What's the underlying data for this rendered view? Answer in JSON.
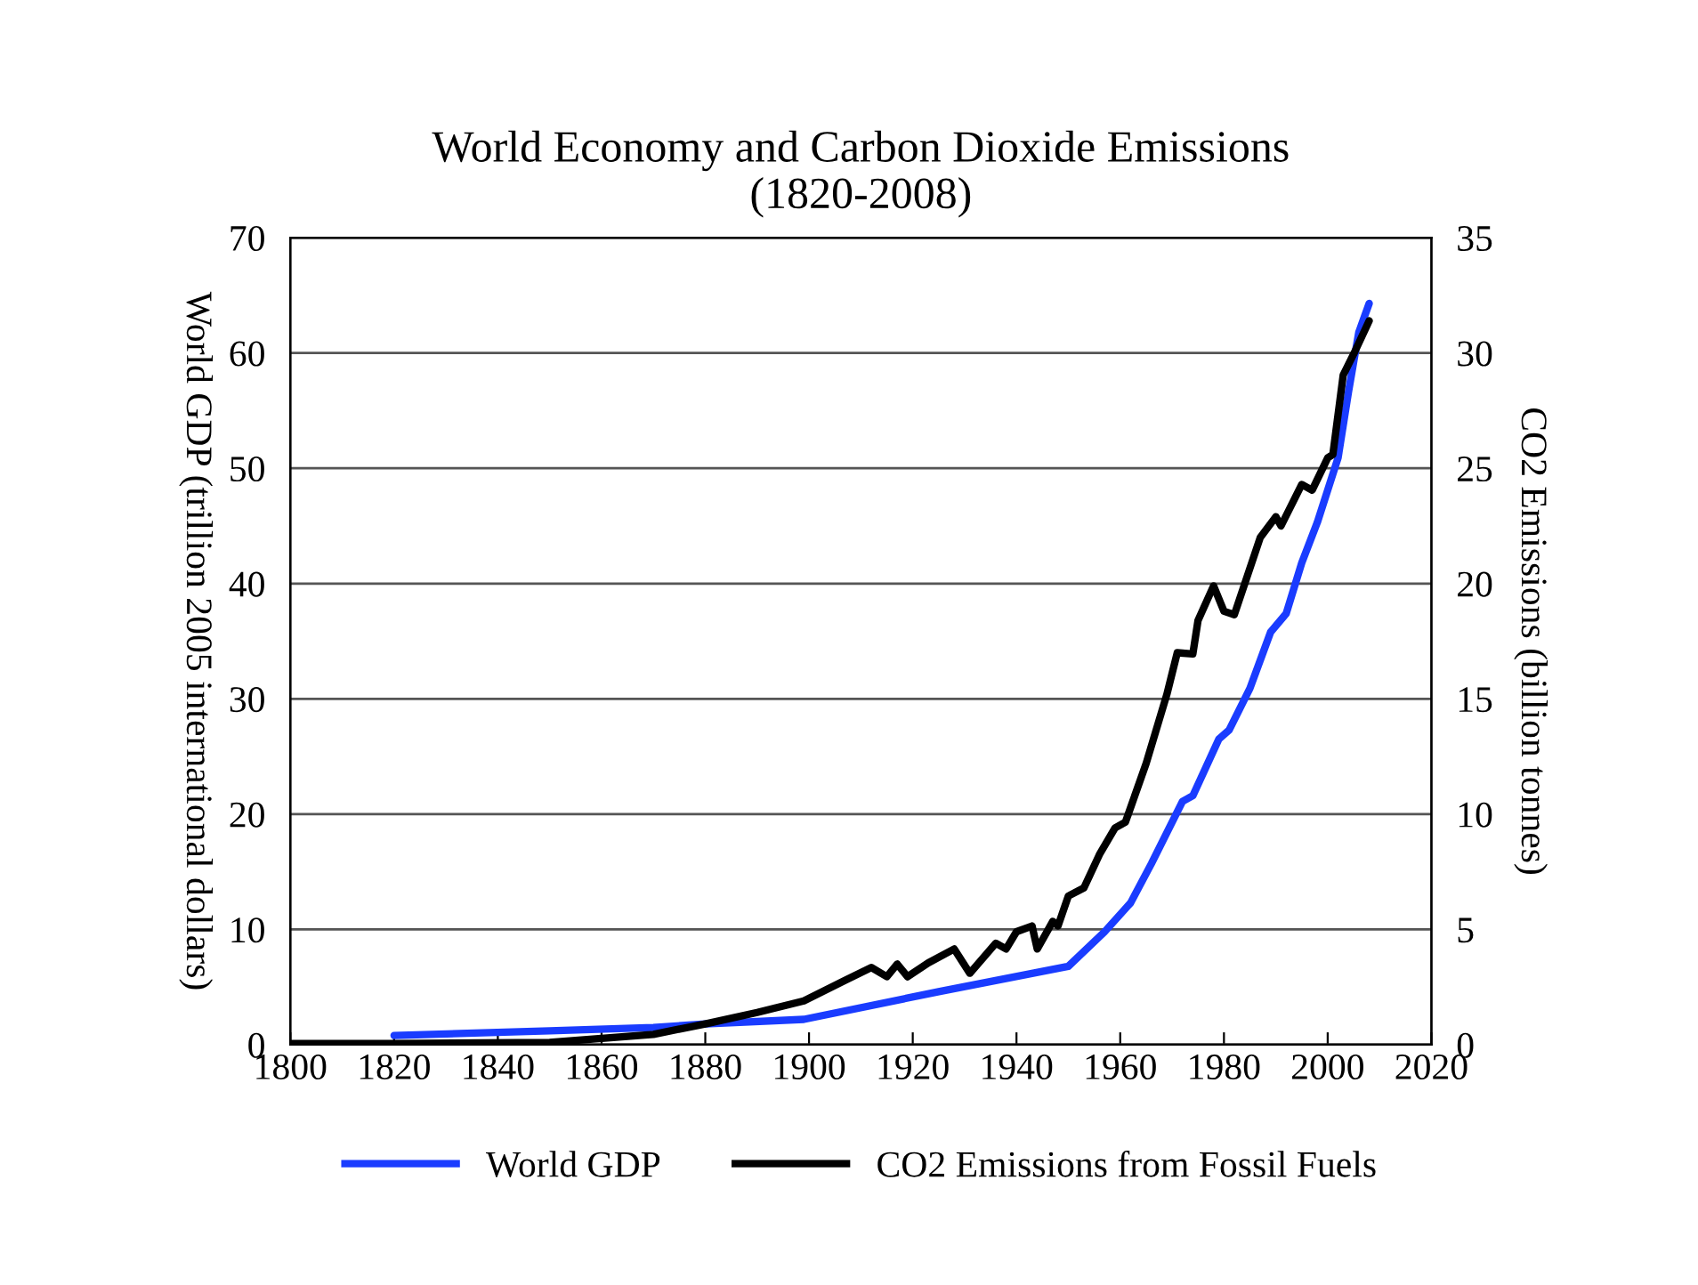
{
  "chart_data": {
    "type": "line",
    "title": "World Economy and Carbon Dioxide Emissions\n(1820-2008)",
    "ylabel": "World GDP (trillion 2005 international dollars)",
    "y2label": "CO2 Emissions (billion tonnes)",
    "xlim": [
      1800,
      2020
    ],
    "xticks": [
      1800,
      1820,
      1840,
      1860,
      1880,
      1900,
      1920,
      1940,
      1960,
      1980,
      2000,
      2020
    ],
    "ylim": [
      0,
      70
    ],
    "yticks": [
      0,
      10,
      20,
      30,
      40,
      50,
      60,
      70
    ],
    "y2lim": [
      0,
      35
    ],
    "y2ticks": [
      0,
      5,
      10,
      15,
      20,
      25,
      30,
      35
    ],
    "grid": "y",
    "legend": "bottom",
    "marker": "none",
    "line_style": "solid",
    "series": [
      {
        "name": "World GDP",
        "color": "#1a3cff",
        "axis": "y",
        "x": [
          1820,
          1850,
          1870,
          1880,
          1899,
          1925,
          1950,
          1957,
          1962,
          1966,
          1972,
          1974,
          1979,
          1981,
          1985,
          1989,
          1992,
          1995,
          1998,
          2002,
          2004,
          2006,
          2008
        ],
        "values": [
          0.8,
          1.2,
          1.5,
          1.8,
          2.2,
          4.6,
          6.8,
          9.8,
          12.3,
          15.7,
          21.1,
          21.6,
          26.5,
          27.3,
          30.9,
          35.8,
          37.4,
          41.8,
          45.3,
          50.9,
          56.6,
          61.8,
          64.3
        ]
      },
      {
        "name": "CO2 Emissions from Fossil Fuels",
        "color": "#000000",
        "axis": "y2",
        "x": [
          1800,
          1820,
          1850,
          1870,
          1880,
          1890,
          1899,
          1907,
          1912,
          1915,
          1917,
          1919,
          1923,
          1928,
          1931,
          1936,
          1938,
          1940,
          1943,
          1944,
          1947,
          1948,
          1950,
          1953,
          1956,
          1959,
          1961,
          1965,
          1969,
          1971,
          1974,
          1975,
          1978,
          1980,
          1982,
          1987,
          1990,
          1991,
          1995,
          1997,
          2000,
          2001,
          2003,
          2005,
          2008
        ],
        "values": [
          0.05,
          0.05,
          0.1,
          0.45,
          0.9,
          1.4,
          1.9,
          2.8,
          3.35,
          2.95,
          3.5,
          2.95,
          3.55,
          4.15,
          3.1,
          4.4,
          4.15,
          4.9,
          5.15,
          4.15,
          5.35,
          5.15,
          6.45,
          6.8,
          8.25,
          9.4,
          9.65,
          12.2,
          15.2,
          17.0,
          16.95,
          18.4,
          19.9,
          18.8,
          18.65,
          22.0,
          22.9,
          22.5,
          24.3,
          24.05,
          25.45,
          25.6,
          29.05,
          29.95,
          31.4
        ]
      }
    ]
  }
}
